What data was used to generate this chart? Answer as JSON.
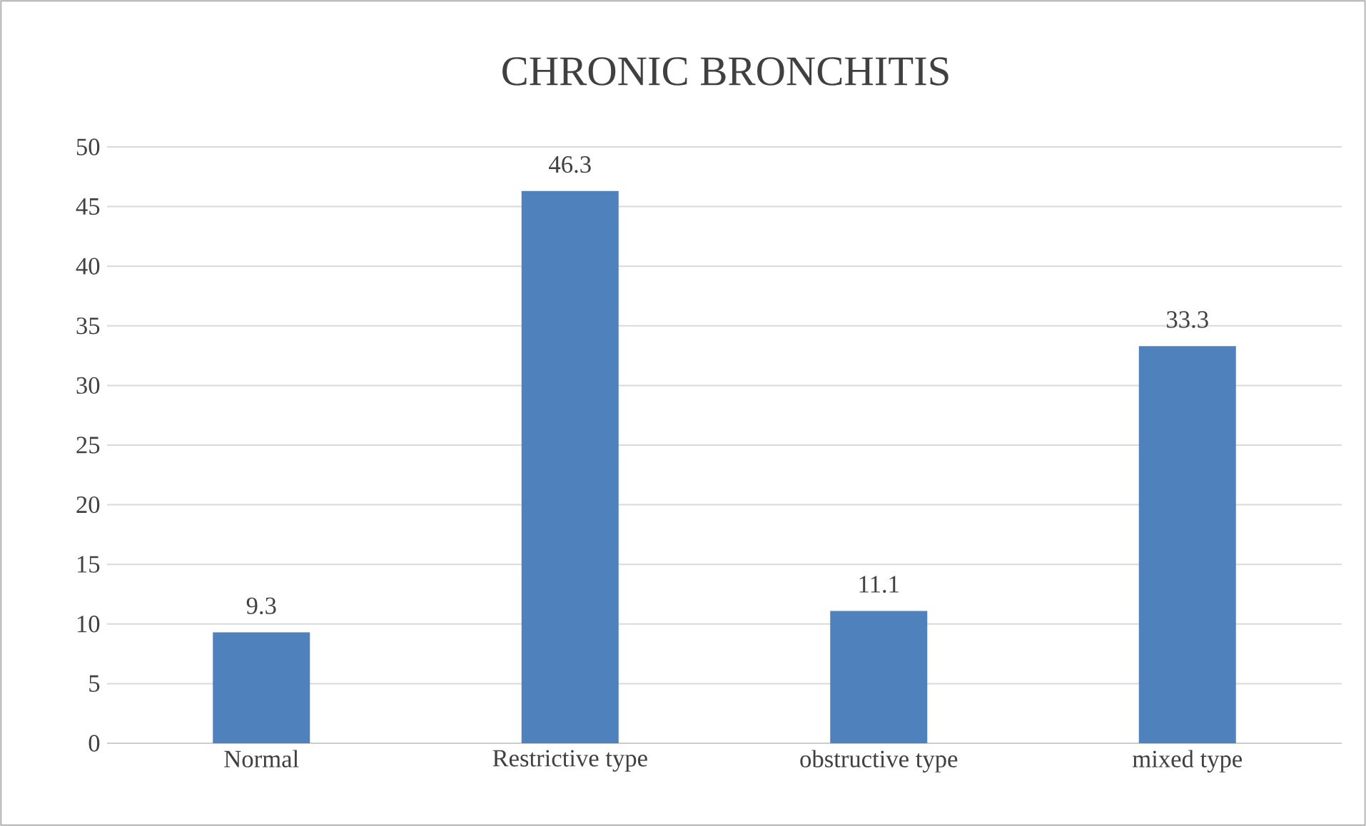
{
  "chart_data": {
    "type": "bar",
    "title": "CHRONIC BRONCHITIS",
    "categories": [
      "Normal",
      "Restrictive type",
      "obstructive type",
      "mixed type"
    ],
    "values": [
      9.3,
      46.3,
      11.1,
      33.3
    ],
    "color": "#4f81bd",
    "ylim": [
      0,
      50
    ],
    "yticks": [
      0,
      5,
      10,
      15,
      20,
      25,
      30,
      35,
      40,
      45,
      50
    ],
    "grid": "y",
    "data_labels": true
  }
}
